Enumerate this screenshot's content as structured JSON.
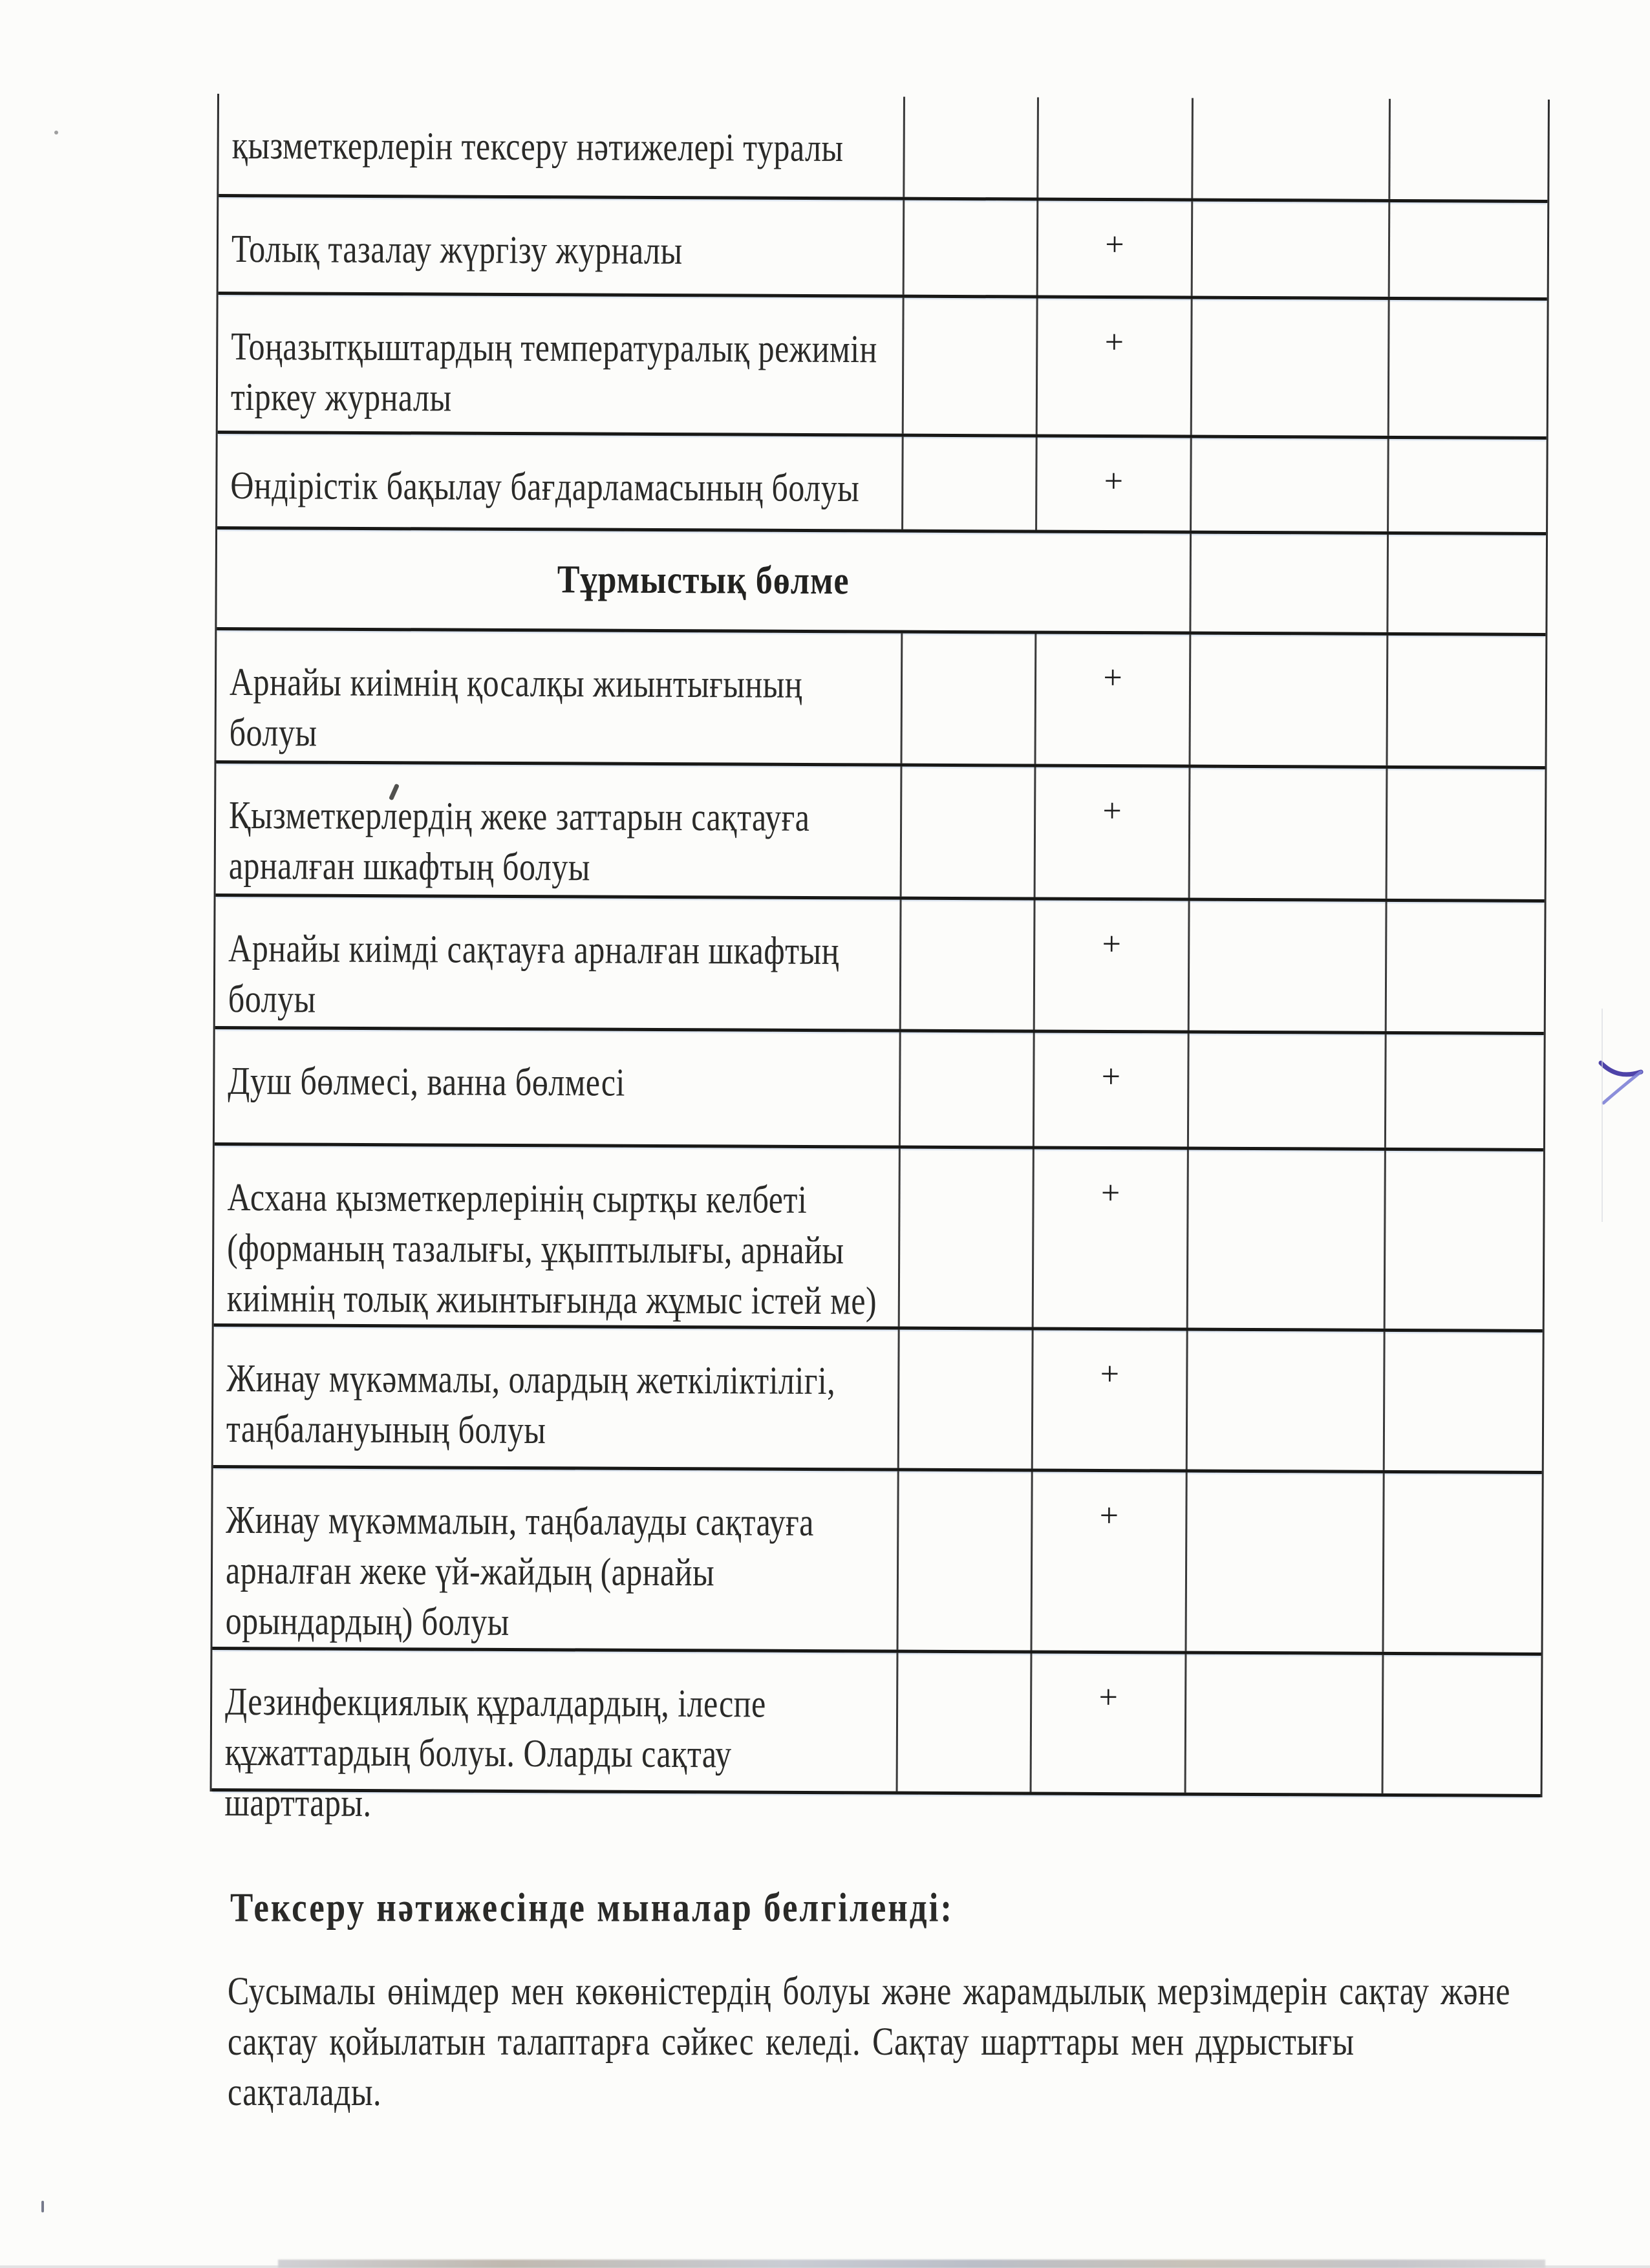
{
  "document": {
    "language": "kk",
    "table": {
      "mark_symbol": "+",
      "rows": [
        {
          "kind": "item",
          "lines": [
            "қызметкерлерін тексеру нәтижелері туралы"
          ],
          "mark": ""
        },
        {
          "kind": "item",
          "lines": [
            "Толық тазалау жүргізу журналы"
          ],
          "mark": "+"
        },
        {
          "kind": "item",
          "lines": [
            "Тоңазытқыштардың температуралық режимін",
            "тіркеу журналы"
          ],
          "mark": "+"
        },
        {
          "kind": "item",
          "lines": [
            "Өндірістік бақылау бағдарламасының болуы"
          ],
          "mark": "+"
        },
        {
          "kind": "section",
          "lines": [
            "Тұрмыстық бөлме"
          ],
          "mark": ""
        },
        {
          "kind": "item",
          "lines": [
            "Арнайы киімнің қосалқы жиынтығының",
            "болуы"
          ],
          "mark": "+"
        },
        {
          "kind": "item",
          "lines": [
            "Қызметкерлердің жеке заттарын сақтауға",
            "арналған шкафтың болуы"
          ],
          "mark": "+"
        },
        {
          "kind": "item",
          "lines": [
            "Арнайы киімді сақтауға арналған шкафтың",
            "болуы"
          ],
          "mark": "+"
        },
        {
          "kind": "item",
          "lines": [
            "Душ бөлмесі, ванна бөлмесі"
          ],
          "mark": "+"
        },
        {
          "kind": "item",
          "lines": [
            "Асхана қызметкерлерінің сыртқы келбеті",
            "(форманың тазалығы, ұқыптылығы, арнайы",
            "киімнің толық жиынтығында жұмыс істей ме)"
          ],
          "mark": "+"
        },
        {
          "kind": "item",
          "lines": [
            "Жинау мүкәммалы, олардың жеткіліктілігі,",
            "таңбалануының болуы"
          ],
          "mark": "+"
        },
        {
          "kind": "item",
          "lines": [
            "Жинау мүкәммалын, таңбалауды сақтауға",
            "арналған жеке үй-жайдың (арнайы",
            "орындардың) болуы"
          ],
          "mark": "+"
        },
        {
          "kind": "item",
          "lines": [
            "Дезинфекциялық құралдардың, ілеспе",
            "құжаттардың болуы. Оларды сақтау шарттары."
          ],
          "mark": "+"
        }
      ]
    },
    "summary": {
      "heading": "Тексеру нәтижесінде мыналар белгіленді:",
      "paragraph_lines": [
        "Сусымалы өнімдер мен көкөністердің болуы және жарамдылық мерзімдерін сақтау және",
        "сақтау қойылатын талаптарға сәйкес келеді. Сақтау шарттары мен дұрыстығы сақталады."
      ]
    },
    "annotations": {
      "pen_mark": "blue handwritten check",
      "pen_color_dark": "#3b2f9e",
      "pen_color_light": "#7e82d6"
    }
  }
}
